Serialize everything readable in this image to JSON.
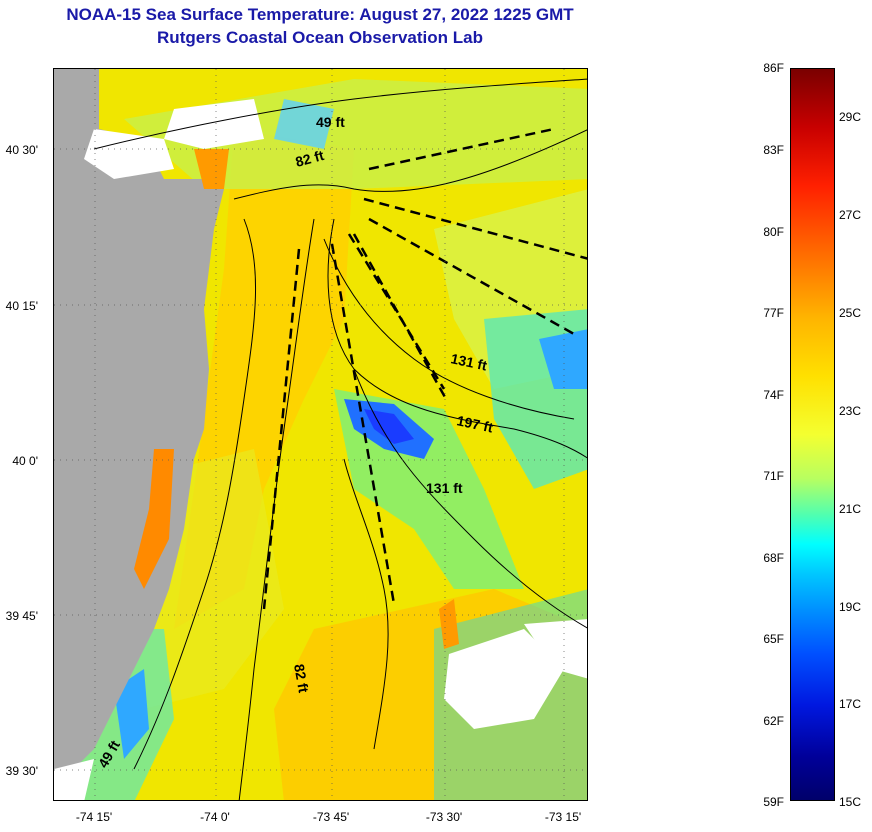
{
  "header": {
    "title_line1": "NOAA-15 Sea Surface Temperature:  August 27, 2022 1225 GMT",
    "title_line2": "Rutgers Coastal Ocean Observation Lab"
  },
  "map": {
    "lat_labels": [
      "40 30'",
      "40 15'",
      "40 0'",
      "39 45'",
      "39 30'"
    ],
    "lon_labels": [
      "-74 15'",
      "-74 0'",
      "-73 45'",
      "-73 30'",
      "-73 15'"
    ],
    "isobath_labels": [
      "49 ft",
      "82 ft",
      "131 ft",
      "197 ft",
      "131 ft",
      "82 ft",
      "49 ft"
    ],
    "colors": {
      "land": "#a9a9a9",
      "cloud": "#ffffff",
      "sea_warm": "#f0e600",
      "sea_cool": "#2fa8ff"
    }
  },
  "colorbar": {
    "fahrenheit_labels": [
      "86F",
      "83F",
      "80F",
      "77F",
      "74F",
      "71F",
      "68F",
      "65F",
      "62F",
      "59F"
    ],
    "celsius_labels": [
      "29C",
      "27C",
      "25C",
      "23C",
      "21C",
      "19C",
      "17C",
      "15C"
    ]
  }
}
